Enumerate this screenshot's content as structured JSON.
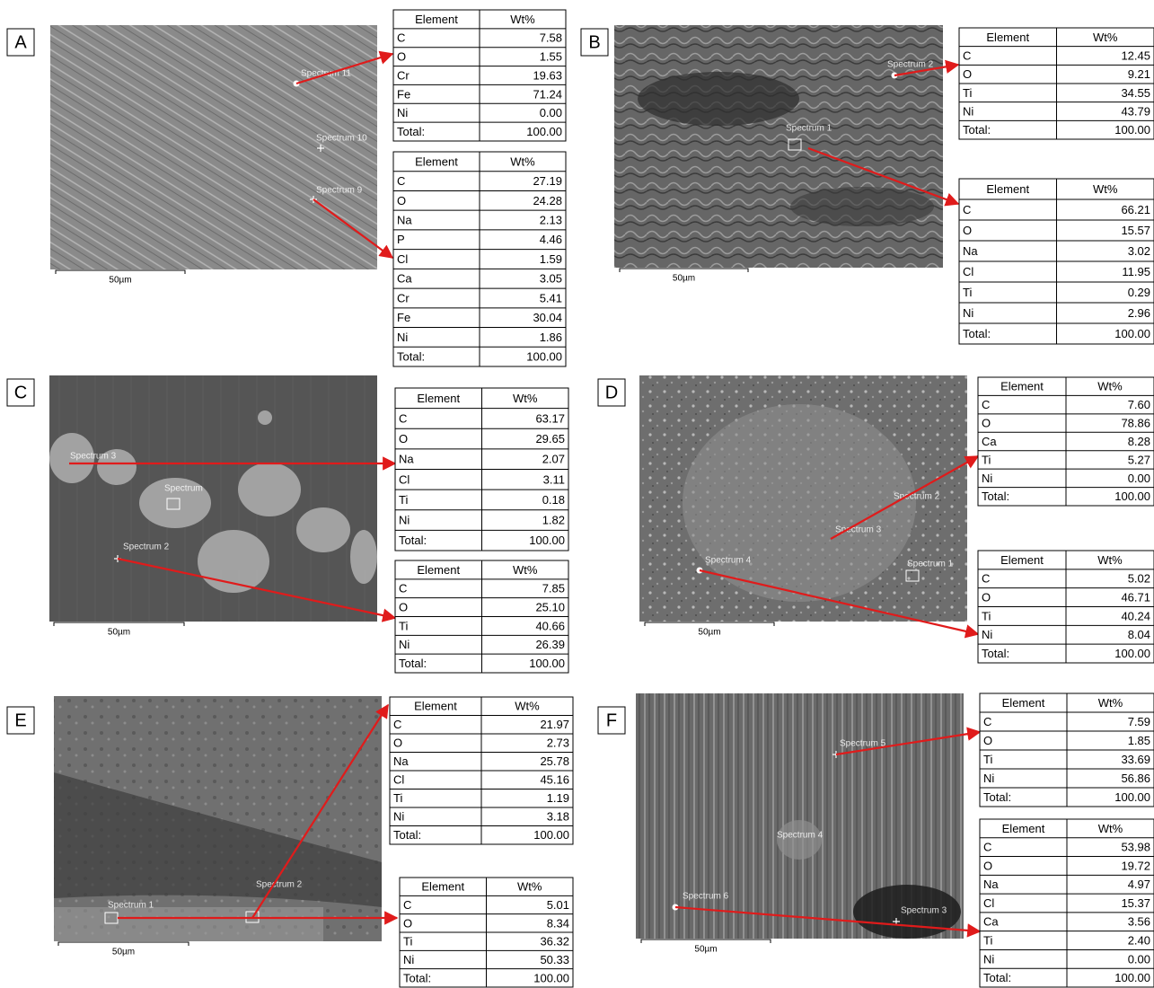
{
  "panels": [
    {
      "label": "A",
      "scale": "50µm",
      "spectra": [
        "Spectrum 11",
        "Spectrum 10",
        "Spectrum 9"
      ],
      "tables": [
        {
          "header": [
            "Element",
            "Wt%"
          ],
          "rows": [
            [
              "C",
              "7.58"
            ],
            [
              "O",
              "1.55"
            ],
            [
              "Cr",
              "19.63"
            ],
            [
              "Fe",
              "71.24"
            ],
            [
              "Ni",
              "0.00"
            ],
            [
              "Total:",
              "100.00"
            ]
          ]
        },
        {
          "header": [
            "Element",
            "Wt%"
          ],
          "rows": [
            [
              "C",
              "27.19"
            ],
            [
              "O",
              "24.28"
            ],
            [
              "Na",
              "2.13"
            ],
            [
              "P",
              "4.46"
            ],
            [
              "Cl",
              "1.59"
            ],
            [
              "Ca",
              "3.05"
            ],
            [
              "Cr",
              "5.41"
            ],
            [
              "Fe",
              "30.04"
            ],
            [
              "Ni",
              "1.86"
            ],
            [
              "Total:",
              "100.00"
            ]
          ]
        }
      ]
    },
    {
      "label": "B",
      "scale": "50µm",
      "spectra": [
        "Spectrum 2",
        "Spectrum 1"
      ],
      "tables": [
        {
          "header": [
            "Element",
            "Wt%"
          ],
          "rows": [
            [
              "C",
              "12.45"
            ],
            [
              "O",
              "9.21"
            ],
            [
              "Ti",
              "34.55"
            ],
            [
              "Ni",
              "43.79"
            ],
            [
              "Total:",
              "100.00"
            ]
          ]
        },
        {
          "header": [
            "Element",
            "Wt%"
          ],
          "rows": [
            [
              "C",
              "66.21"
            ],
            [
              "O",
              "15.57"
            ],
            [
              "Na",
              "3.02"
            ],
            [
              "Cl",
              "11.95"
            ],
            [
              "Ti",
              "0.29"
            ],
            [
              "Ni",
              "2.96"
            ],
            [
              "Total:",
              "100.00"
            ]
          ]
        }
      ]
    },
    {
      "label": "C",
      "scale": "50µm",
      "spectra": [
        "Spectrum 3",
        "Spectrum",
        "Spectrum 2"
      ],
      "tables": [
        {
          "header": [
            "Element",
            "Wt%"
          ],
          "rows": [
            [
              "C",
              "63.17"
            ],
            [
              "O",
              "29.65"
            ],
            [
              "Na",
              "2.07"
            ],
            [
              "Cl",
              "3.11"
            ],
            [
              "Ti",
              "0.18"
            ],
            [
              "Ni",
              "1.82"
            ],
            [
              "Total:",
              "100.00"
            ]
          ]
        },
        {
          "header": [
            "Element",
            "Wt%"
          ],
          "rows": [
            [
              "C",
              "7.85"
            ],
            [
              "O",
              "25.10"
            ],
            [
              "Ti",
              "40.66"
            ],
            [
              "Ni",
              "26.39"
            ],
            [
              "Total:",
              "100.00"
            ]
          ]
        }
      ]
    },
    {
      "label": "D",
      "scale": "50µm",
      "spectra": [
        "Spectrum 2",
        "Spectrum 3",
        "Spectrum 4",
        "Spectrum 1"
      ],
      "tables": [
        {
          "header": [
            "Element",
            "Wt%"
          ],
          "rows": [
            [
              "C",
              "7.60"
            ],
            [
              "O",
              "78.86"
            ],
            [
              "Ca",
              "8.28"
            ],
            [
              "Ti",
              "5.27"
            ],
            [
              "Ni",
              "0.00"
            ],
            [
              "Total:",
              "100.00"
            ]
          ]
        },
        {
          "header": [
            "Element",
            "Wt%"
          ],
          "rows": [
            [
              "C",
              "5.02"
            ],
            [
              "O",
              "46.71"
            ],
            [
              "Ti",
              "40.24"
            ],
            [
              "Ni",
              "8.04"
            ],
            [
              "Total:",
              "100.00"
            ]
          ]
        }
      ]
    },
    {
      "label": "E",
      "scale": "50µm",
      "spectra": [
        "Spectrum 2",
        "Spectrum 1"
      ],
      "tables": [
        {
          "header": [
            "Element",
            "Wt%"
          ],
          "rows": [
            [
              "C",
              "21.97"
            ],
            [
              "O",
              "2.73"
            ],
            [
              "Na",
              "25.78"
            ],
            [
              "Cl",
              "45.16"
            ],
            [
              "Ti",
              "1.19"
            ],
            [
              "Ni",
              "3.18"
            ],
            [
              "Total:",
              "100.00"
            ]
          ]
        },
        {
          "header": [
            "Element",
            "Wt%"
          ],
          "rows": [
            [
              "C",
              "5.01"
            ],
            [
              "O",
              "8.34"
            ],
            [
              "Ti",
              "36.32"
            ],
            [
              "Ni",
              "50.33"
            ],
            [
              "Total:",
              "100.00"
            ]
          ]
        }
      ]
    },
    {
      "label": "F",
      "scale": "50µm",
      "spectra": [
        "Spectrum 5",
        "Spectrum 4",
        "Spectrum 6",
        "Spectrum 3"
      ],
      "tables": [
        {
          "header": [
            "Element",
            "Wt%"
          ],
          "rows": [
            [
              "C",
              "7.59"
            ],
            [
              "O",
              "1.85"
            ],
            [
              "Ti",
              "33.69"
            ],
            [
              "Ni",
              "56.86"
            ],
            [
              "Total:",
              "100.00"
            ]
          ]
        },
        {
          "header": [
            "Element",
            "Wt%"
          ],
          "rows": [
            [
              "C",
              "53.98"
            ],
            [
              "O",
              "19.72"
            ],
            [
              "Na",
              "4.97"
            ],
            [
              "Cl",
              "15.37"
            ],
            [
              "Ca",
              "3.56"
            ],
            [
              "Ti",
              "2.40"
            ],
            [
              "Ni",
              "0.00"
            ],
            [
              "Total:",
              "100.00"
            ]
          ]
        }
      ]
    }
  ]
}
